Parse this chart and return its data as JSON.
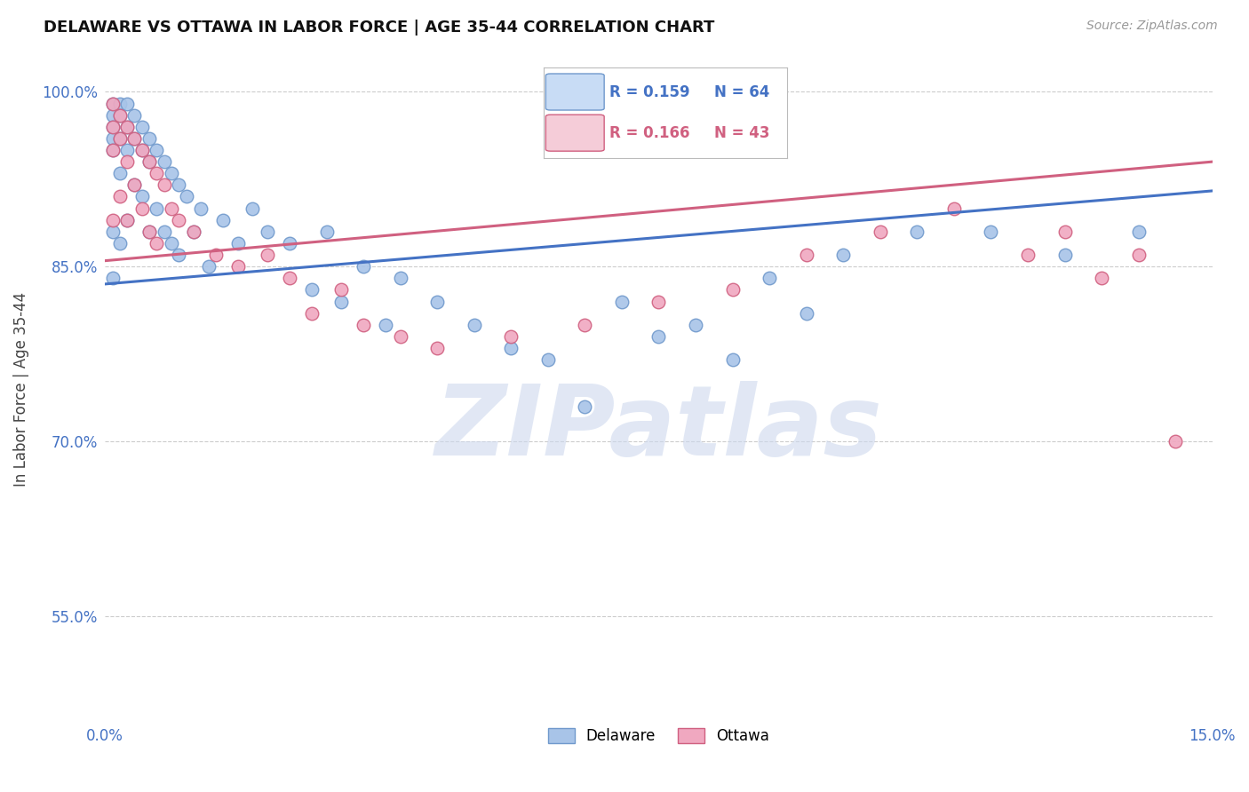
{
  "title": "DELAWARE VS OTTAWA IN LABOR FORCE | AGE 35-44 CORRELATION CHART",
  "source": "Source: ZipAtlas.com",
  "ylabel": "In Labor Force | Age 35-44",
  "xlim": [
    0.0,
    0.15
  ],
  "ylim": [
    0.46,
    1.03
  ],
  "xticks": [
    0.0,
    0.03,
    0.06,
    0.09,
    0.12,
    0.15
  ],
  "xticklabels": [
    "0.0%",
    "",
    "",
    "",
    "",
    "15.0%"
  ],
  "yticks": [
    0.55,
    0.7,
    0.85,
    1.0
  ],
  "yticklabels": [
    "55.0%",
    "70.0%",
    "85.0%",
    "100.0%"
  ],
  "grid_color": "#cccccc",
  "background_color": "#ffffff",
  "delaware_color": "#a8c4e8",
  "ottawa_color": "#f0a8c0",
  "delaware_edge": "#7099cc",
  "ottawa_edge": "#d06080",
  "line_blue": "#4472c4",
  "line_pink": "#d06080",
  "R_delaware": 0.159,
  "N_delaware": 64,
  "R_ottawa": 0.166,
  "N_ottawa": 43,
  "legend_box_color_delaware": "#c8dcf5",
  "legend_box_color_ottawa": "#f5ccd8",
  "watermark": "ZIPatlas",
  "watermark_color": "#cdd8ee",
  "delaware_x": [
    0.001,
    0.001,
    0.001,
    0.001,
    0.001,
    0.001,
    0.001,
    0.002,
    0.002,
    0.002,
    0.002,
    0.002,
    0.003,
    0.003,
    0.003,
    0.003,
    0.004,
    0.004,
    0.004,
    0.005,
    0.005,
    0.005,
    0.006,
    0.006,
    0.006,
    0.007,
    0.007,
    0.008,
    0.008,
    0.009,
    0.009,
    0.01,
    0.01,
    0.011,
    0.012,
    0.013,
    0.014,
    0.016,
    0.018,
    0.02,
    0.022,
    0.025,
    0.028,
    0.03,
    0.032,
    0.035,
    0.038,
    0.04,
    0.045,
    0.05,
    0.055,
    0.06,
    0.065,
    0.07,
    0.075,
    0.08,
    0.085,
    0.09,
    0.095,
    0.1,
    0.11,
    0.12,
    0.13,
    0.14
  ],
  "delaware_y": [
    0.99,
    0.98,
    0.97,
    0.96,
    0.95,
    0.88,
    0.84,
    0.99,
    0.98,
    0.96,
    0.93,
    0.87,
    0.99,
    0.97,
    0.95,
    0.89,
    0.98,
    0.96,
    0.92,
    0.97,
    0.95,
    0.91,
    0.96,
    0.94,
    0.88,
    0.95,
    0.9,
    0.94,
    0.88,
    0.93,
    0.87,
    0.92,
    0.86,
    0.91,
    0.88,
    0.9,
    0.85,
    0.89,
    0.87,
    0.9,
    0.88,
    0.87,
    0.83,
    0.88,
    0.82,
    0.85,
    0.8,
    0.84,
    0.82,
    0.8,
    0.78,
    0.77,
    0.73,
    0.82,
    0.79,
    0.8,
    0.77,
    0.84,
    0.81,
    0.86,
    0.88,
    0.88,
    0.86,
    0.88
  ],
  "ottawa_x": [
    0.001,
    0.001,
    0.001,
    0.001,
    0.002,
    0.002,
    0.002,
    0.003,
    0.003,
    0.003,
    0.004,
    0.004,
    0.005,
    0.005,
    0.006,
    0.006,
    0.007,
    0.007,
    0.008,
    0.009,
    0.01,
    0.012,
    0.015,
    0.018,
    0.022,
    0.025,
    0.028,
    0.032,
    0.035,
    0.04,
    0.045,
    0.055,
    0.065,
    0.075,
    0.085,
    0.095,
    0.105,
    0.115,
    0.125,
    0.13,
    0.135,
    0.14,
    0.145
  ],
  "ottawa_y": [
    0.99,
    0.97,
    0.95,
    0.89,
    0.98,
    0.96,
    0.91,
    0.97,
    0.94,
    0.89,
    0.96,
    0.92,
    0.95,
    0.9,
    0.94,
    0.88,
    0.93,
    0.87,
    0.92,
    0.9,
    0.89,
    0.88,
    0.86,
    0.85,
    0.86,
    0.84,
    0.81,
    0.83,
    0.8,
    0.79,
    0.78,
    0.79,
    0.8,
    0.82,
    0.83,
    0.86,
    0.88,
    0.9,
    0.86,
    0.88,
    0.84,
    0.86,
    0.7
  ]
}
